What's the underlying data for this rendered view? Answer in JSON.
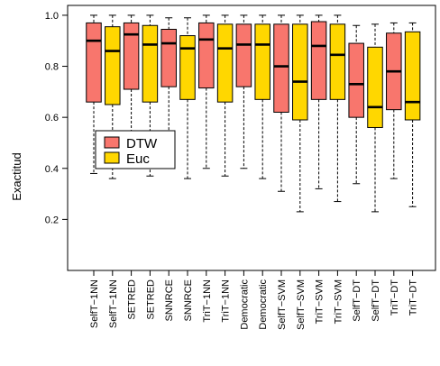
{
  "chart_data": {
    "type": "boxplot",
    "ylabel": "Exactitud",
    "ylim": [
      0,
      1
    ],
    "yticks": [
      "0.2",
      "0.4",
      "0.6",
      "0.8",
      "1.0"
    ],
    "ytick_values": [
      0.2,
      0.4,
      0.6,
      0.8,
      1.0
    ],
    "legend_position": "left-middle",
    "legend": [
      {
        "label": "DTW",
        "color": "#F8766D"
      },
      {
        "label": "Euc",
        "color": "#FFD700"
      }
    ],
    "categories": [
      "SelfT−1NN",
      "SelfT−1NN",
      "SETRED",
      "SETRED",
      "SNNRCE",
      "SNNRCE",
      "TriT−1NN",
      "TriT−1NN",
      "Democratic",
      "Democratic",
      "SelfT−SVM",
      "SelfT−SVM",
      "TriT−SVM",
      "TriT−SVM",
      "SelfT−DT",
      "SelfT−DT",
      "TriT−DT",
      "TriT−DT"
    ],
    "boxes": [
      {
        "series": "DTW",
        "min": 0.38,
        "q1": 0.66,
        "median": 0.9,
        "q3": 0.97,
        "max": 1.0
      },
      {
        "series": "Euc",
        "min": 0.36,
        "q1": 0.65,
        "median": 0.86,
        "q3": 0.955,
        "max": 1.0
      },
      {
        "series": "DTW",
        "min": 0.43,
        "q1": 0.71,
        "median": 0.925,
        "q3": 0.97,
        "max": 1.0
      },
      {
        "series": "Euc",
        "min": 0.37,
        "q1": 0.66,
        "median": 0.885,
        "q3": 0.96,
        "max": 1.0
      },
      {
        "series": "DTW",
        "min": 0.41,
        "q1": 0.72,
        "median": 0.89,
        "q3": 0.945,
        "max": 0.99
      },
      {
        "series": "Euc",
        "min": 0.36,
        "q1": 0.67,
        "median": 0.87,
        "q3": 0.92,
        "max": 0.99
      },
      {
        "series": "DTW",
        "min": 0.4,
        "q1": 0.715,
        "median": 0.905,
        "q3": 0.97,
        "max": 1.0
      },
      {
        "series": "Euc",
        "min": 0.37,
        "q1": 0.66,
        "median": 0.87,
        "q3": 0.965,
        "max": 1.0
      },
      {
        "series": "DTW",
        "min": 0.4,
        "q1": 0.72,
        "median": 0.885,
        "q3": 0.965,
        "max": 1.0
      },
      {
        "series": "Euc",
        "min": 0.36,
        "q1": 0.67,
        "median": 0.885,
        "q3": 0.965,
        "max": 1.0
      },
      {
        "series": "DTW",
        "min": 0.31,
        "q1": 0.62,
        "median": 0.8,
        "q3": 0.965,
        "max": 1.0
      },
      {
        "series": "Euc",
        "min": 0.23,
        "q1": 0.59,
        "median": 0.74,
        "q3": 0.965,
        "max": 1.0
      },
      {
        "series": "DTW",
        "min": 0.32,
        "q1": 0.67,
        "median": 0.88,
        "q3": 0.975,
        "max": 1.0
      },
      {
        "series": "Euc",
        "min": 0.27,
        "q1": 0.67,
        "median": 0.845,
        "q3": 0.965,
        "max": 1.0
      },
      {
        "series": "DTW",
        "min": 0.34,
        "q1": 0.6,
        "median": 0.73,
        "q3": 0.89,
        "max": 0.96
      },
      {
        "series": "Euc",
        "min": 0.23,
        "q1": 0.56,
        "median": 0.64,
        "q3": 0.875,
        "max": 0.965
      },
      {
        "series": "DTW",
        "min": 0.36,
        "q1": 0.63,
        "median": 0.78,
        "q3": 0.93,
        "max": 0.97
      },
      {
        "series": "Euc",
        "min": 0.25,
        "q1": 0.59,
        "median": 0.66,
        "q3": 0.935,
        "max": 0.97
      }
    ]
  }
}
